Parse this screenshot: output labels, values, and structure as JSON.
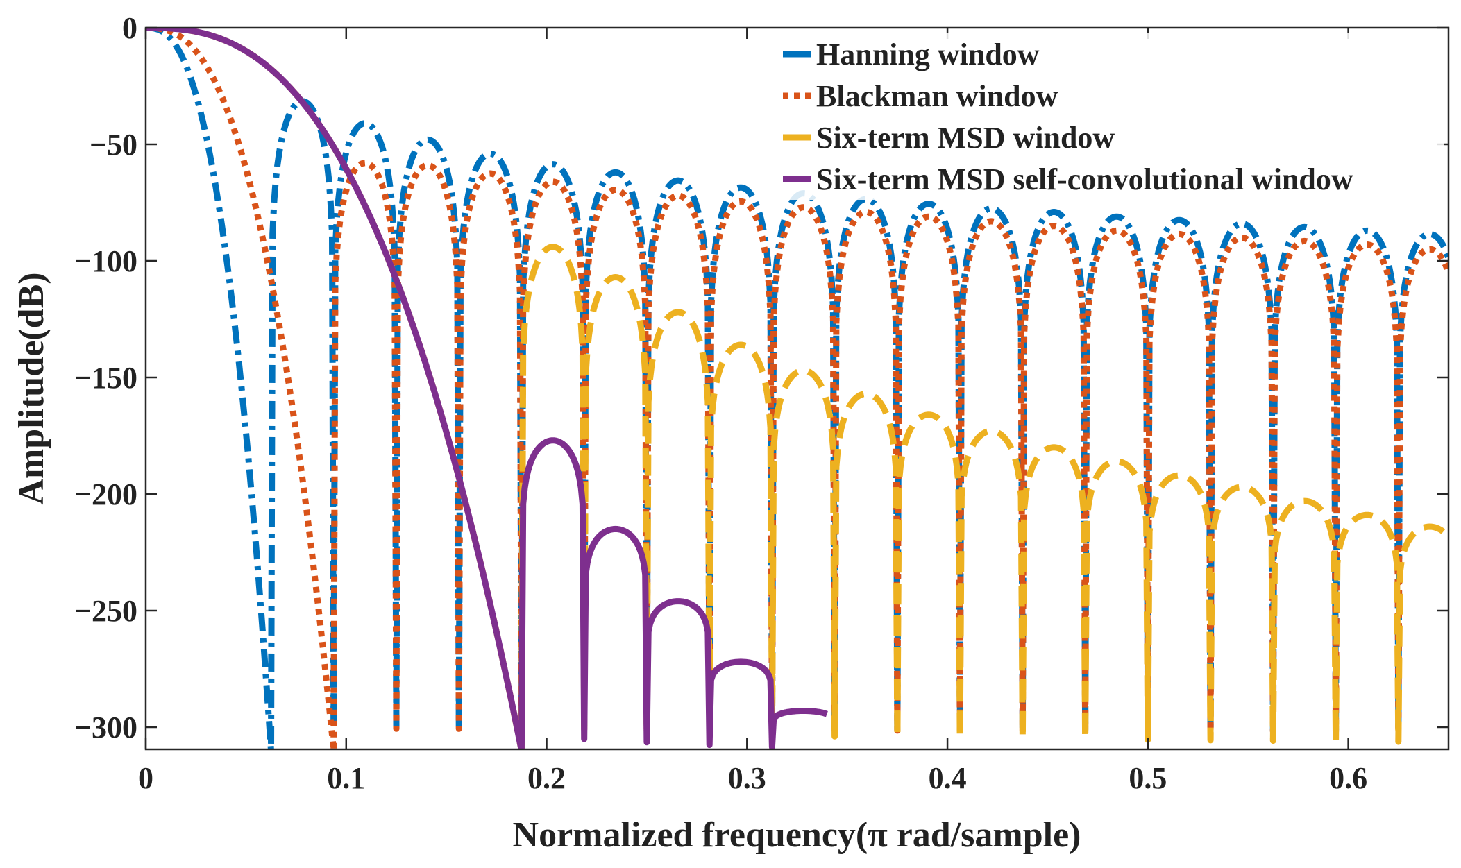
{
  "chart_data": {
    "type": "line",
    "title": "",
    "xlabel": "Normalized frequency(π rad/sample)",
    "ylabel": "Amplitude(dB)",
    "xlim": [
      0,
      0.65
    ],
    "ylim": [
      -310,
      0
    ],
    "xticks": [
      0,
      0.1,
      0.2,
      0.3,
      0.4,
      0.5,
      0.6
    ],
    "xtick_labels": [
      "0",
      "0.1",
      "0.2",
      "0.3",
      "0.4",
      "0.5",
      "0.6"
    ],
    "yticks": [
      0,
      -50,
      -100,
      -150,
      -200,
      -250,
      -300
    ],
    "ytick_labels": [
      "0",
      "−50",
      "−100",
      "−150",
      "−200",
      "−250",
      "−300"
    ],
    "grid": false,
    "legend_position": "top-right",
    "series": [
      {
        "name": "Hanning window",
        "color": "#0072BD",
        "style": "dash-dot",
        "main_lobe_null": 0.0625,
        "null_spacing": 0.03125,
        "sidelobe_peaks_db": [
          -31.5,
          -41,
          -48,
          -54,
          -58.5,
          -62,
          -65.5,
          -68.5,
          -71,
          -73.5,
          -75.5,
          -77.5,
          -79,
          -81,
          -82.5,
          -84,
          -85.5,
          -87,
          -88.5,
          -90
        ]
      },
      {
        "name": "Blackman window",
        "color": "#D95319",
        "style": "dotted",
        "main_lobe_null": 0.09375,
        "null_spacing": 0.03125,
        "sidelobe_peaks_db": [
          -58,
          -59,
          -62.5,
          -66,
          -69.5,
          -72,
          -74.5,
          -77,
          -79,
          -81,
          -83,
          -85,
          -87,
          -88.5,
          -90,
          -91.5,
          -93,
          -95
        ]
      },
      {
        "name": "Six-term MSD window",
        "color": "#EDB120",
        "style": "dashed",
        "main_lobe_null": 0.1875,
        "null_spacing": 0.03125,
        "sidelobe_peaks_db": [
          -94,
          -107,
          -122,
          -136,
          -147,
          -157,
          -166,
          -173,
          -180,
          -186,
          -192,
          -197,
          -203,
          -209,
          -214
        ]
      },
      {
        "name": "Six-term MSD self-convolutional window",
        "color": "#7E2F8E",
        "style": "solid",
        "main_lobe_null": 0.1875,
        "null_spacing": 0.03125,
        "sidelobe_peaks_db": [
          -177,
          -215,
          -246,
          -272,
          -293
        ],
        "x_end": 0.34
      }
    ]
  }
}
